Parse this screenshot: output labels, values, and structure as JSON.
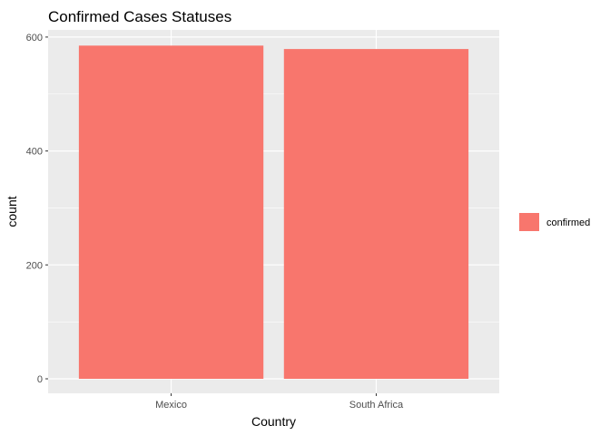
{
  "chart_data": {
    "type": "bar",
    "title": "Confirmed Cases Statuses",
    "xlabel": "Country",
    "ylabel": "count",
    "categories": [
      "Mexico",
      "South Africa"
    ],
    "series": [
      {
        "name": "confirmed",
        "values": [
          585,
          579
        ],
        "color": "#F8766D"
      }
    ],
    "ylim": [
      0,
      612
    ],
    "yticks": [
      0,
      200,
      400,
      600
    ],
    "grid": true,
    "legend_position": "right",
    "panel_background": "#EBEBEB",
    "grid_color": "#FFFFFF"
  }
}
